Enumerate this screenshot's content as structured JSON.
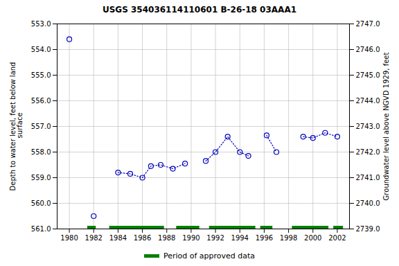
{
  "chart_data": {
    "type": "line",
    "title": "USGS 354036114110601 B-26-18 03AAA1",
    "ylabel": "Depth to water level, feet below land\n surface",
    "y2label": "Groundwater level above NGVD 1929, feet",
    "xlim": [
      1979,
      2003
    ],
    "xticks": [
      1980,
      1982,
      1984,
      1986,
      1988,
      1990,
      1992,
      1994,
      1996,
      1998,
      2000,
      2002
    ],
    "ylim": [
      561.0,
      553.0
    ],
    "yticks": [
      {
        "value": 553.0,
        "label": "553.0"
      },
      {
        "value": 554.0,
        "label": "554.0"
      },
      {
        "value": 555.0,
        "label": "555.0"
      },
      {
        "value": 556.0,
        "label": "556.0"
      },
      {
        "value": 557.0,
        "label": "557.0"
      },
      {
        "value": 558.0,
        "label": "558.0"
      },
      {
        "value": 559.0,
        "label": "559.0"
      },
      {
        "value": 560.0,
        "label": "560.0"
      },
      {
        "value": 561.0,
        "label": "561.0"
      }
    ],
    "y2lim": [
      2739.0,
      2747.0
    ],
    "y2ticks": [
      {
        "value": 2739.0,
        "label": "2739.0"
      },
      {
        "value": 2740.0,
        "label": "2740.0"
      },
      {
        "value": 2741.0,
        "label": "2741.0"
      },
      {
        "value": 2742.0,
        "label": "2742.0"
      },
      {
        "value": 2743.0,
        "label": "2743.0"
      },
      {
        "value": 2744.0,
        "label": "2744.0"
      },
      {
        "value": 2745.0,
        "label": "2745.0"
      },
      {
        "value": 2746.0,
        "label": "2746.0"
      },
      {
        "value": 2747.0,
        "label": "2747.0"
      }
    ],
    "grid": true,
    "legend": "bottom",
    "series": [
      {
        "color": "#0000bb",
        "marker": "circle",
        "line_style": "dotted",
        "x": [
          1980.0
        ],
        "values": [
          553.6
        ]
      },
      {
        "color": "#0000bb",
        "marker": "circle",
        "line_style": "dotted",
        "x": [
          1982.0
        ],
        "values": [
          560.5
        ]
      },
      {
        "color": "#0000bb",
        "marker": "circle",
        "line_style": "dotted",
        "x": [
          1984.0,
          1985.0,
          1986.0,
          1986.7,
          1987.5,
          1988.5,
          1989.5
        ],
        "values": [
          558.8,
          558.85,
          559.0,
          558.55,
          558.5,
          558.65,
          558.45
        ]
      },
      {
        "color": "#0000bb",
        "marker": "circle",
        "line_style": "dotted",
        "x": [
          1991.2,
          1992.0,
          1993.0,
          1994.0,
          1994.7
        ],
        "values": [
          558.35,
          558.0,
          557.4,
          558.0,
          558.15
        ]
      },
      {
        "color": "#0000bb",
        "marker": "circle",
        "line_style": "dotted",
        "x": [
          1996.2,
          1997.0
        ],
        "values": [
          557.35,
          558.0
        ]
      },
      {
        "color": "#0000bb",
        "marker": "circle",
        "line_style": "dotted",
        "x": [
          1999.2,
          2000.0,
          2001.0,
          2002.0
        ],
        "values": [
          557.4,
          557.45,
          557.25,
          557.4
        ]
      }
    ],
    "periods": {
      "name": "Period of approved data",
      "color": "#008000",
      "ranges": [
        [
          1981.5,
          1982.2
        ],
        [
          1983.3,
          1987.8
        ],
        [
          1988.8,
          1990.7
        ],
        [
          1991.5,
          1995.3
        ],
        [
          1995.7,
          1996.7
        ],
        [
          1998.3,
          2001.3
        ],
        [
          2001.7,
          2002.5
        ]
      ]
    }
  }
}
